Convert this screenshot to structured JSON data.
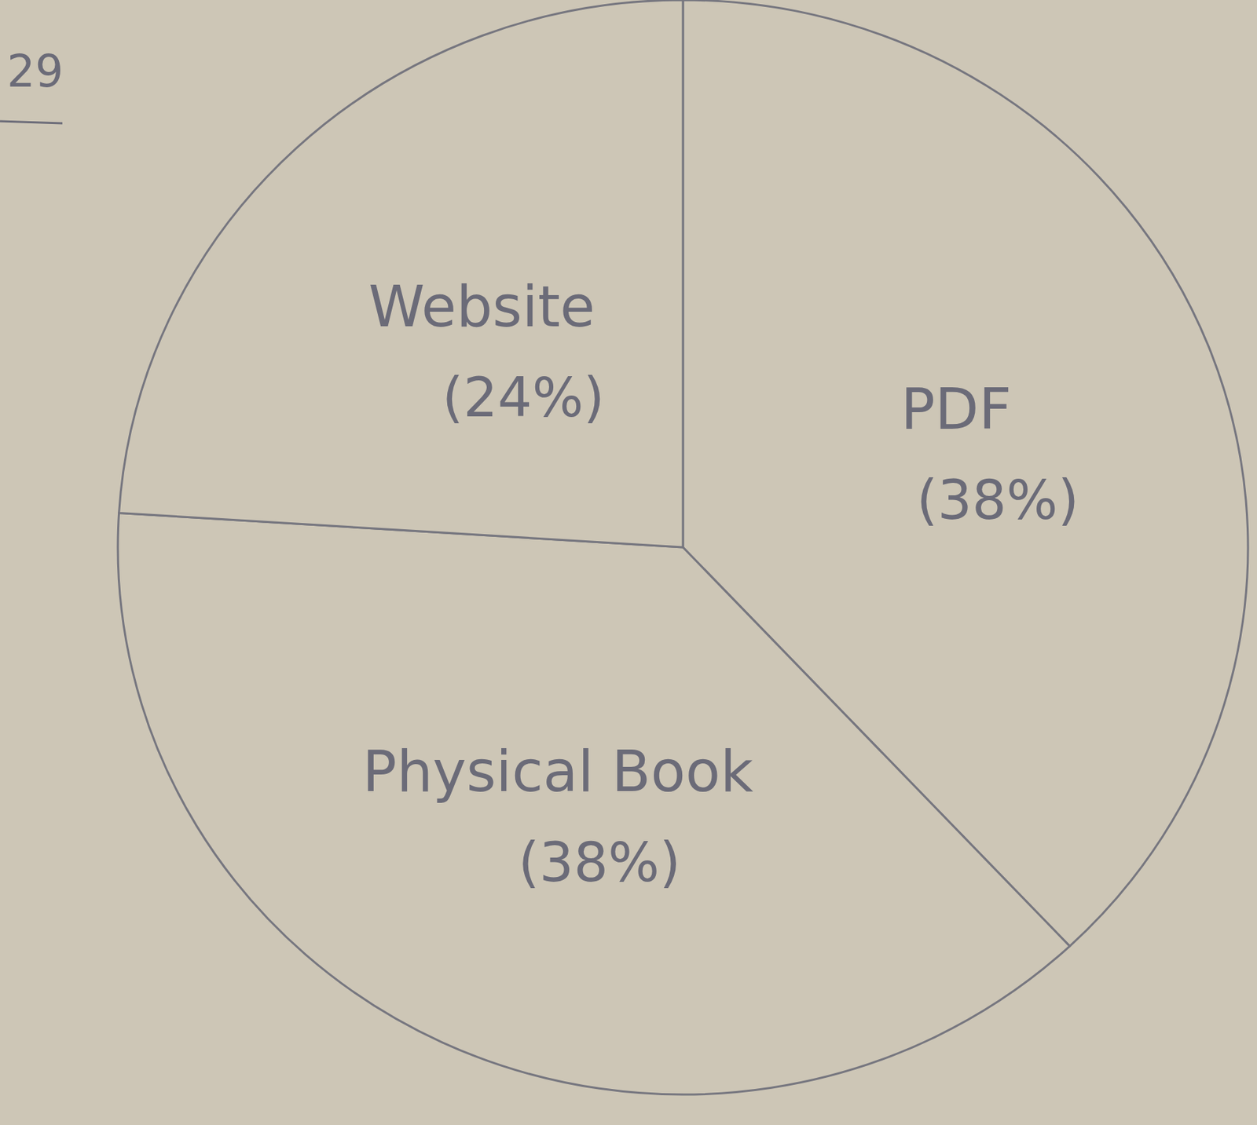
{
  "chart_data": {
    "type": "pie",
    "annotations": [
      "29"
    ],
    "categories": [
      "PDF",
      "Physical Book",
      "Website"
    ],
    "values": [
      38,
      38,
      24
    ],
    "value_labels": [
      "(38%)",
      "(38%)",
      "(24%)"
    ],
    "color": "#cdc6b6",
    "data_labels": true
  }
}
